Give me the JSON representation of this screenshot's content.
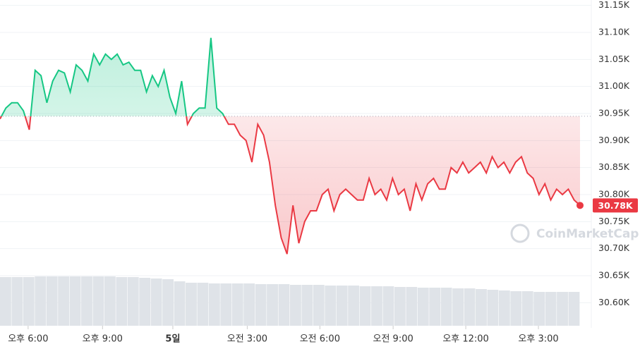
{
  "chart_data": {
    "type": "line",
    "values": [
      30.94,
      30.96,
      30.97,
      30.97,
      30.955,
      30.92,
      31.03,
      31.02,
      30.97,
      31.01,
      31.03,
      31.025,
      30.99,
      31.04,
      31.03,
      31.01,
      31.06,
      31.04,
      31.06,
      31.05,
      31.06,
      31.04,
      31.045,
      31.03,
      31.03,
      30.99,
      31.02,
      31.0,
      31.03,
      30.98,
      30.95,
      31.01,
      30.93,
      30.95,
      30.96,
      30.96,
      31.09,
      30.96,
      30.95,
      30.93,
      30.93,
      30.91,
      30.9,
      30.86,
      30.93,
      30.91,
      30.86,
      30.78,
      30.72,
      30.69,
      30.78,
      30.71,
      30.75,
      30.77,
      30.77,
      30.8,
      30.81,
      30.77,
      30.8,
      30.81,
      30.8,
      30.79,
      30.79,
      30.83,
      30.8,
      30.81,
      30.79,
      30.83,
      30.8,
      30.81,
      30.77,
      30.82,
      30.79,
      30.82,
      30.83,
      30.81,
      30.81,
      30.85,
      30.84,
      30.86,
      30.84,
      30.85,
      30.86,
      30.84,
      30.87,
      30.85,
      30.86,
      30.84,
      30.86,
      30.87,
      30.84,
      30.83,
      30.8,
      30.82,
      30.79,
      30.81,
      30.8,
      30.81,
      30.79,
      30.78
    ],
    "current_price_label": "30.78K",
    "baseline": 30.945,
    "up_color": "#16c784",
    "down_color": "#ea3943",
    "xlim": [
      0,
      99
    ],
    "xticks": [
      {
        "value": 4.8,
        "label": "오후 6:00"
      },
      {
        "value": 17.5,
        "label": "오후 9:00"
      },
      {
        "value": 29.5,
        "label": "5일"
      },
      {
        "value": 42.2,
        "label": "오전 3:00"
      },
      {
        "value": 54.6,
        "label": "오전 6:00"
      },
      {
        "value": 67.1,
        "label": "오전 9:00"
      },
      {
        "value": 79.5,
        "label": "오후 12:00"
      },
      {
        "value": 91.9,
        "label": "오후 3:00"
      }
    ],
    "ylim": [
      30.56,
      31.16
    ],
    "yticks": [
      {
        "value": 30.6,
        "label": "30.60K"
      },
      {
        "value": 30.65,
        "label": "30.65K"
      },
      {
        "value": 30.7,
        "label": "30.70K"
      },
      {
        "value": 30.75,
        "label": "30.75K"
      },
      {
        "value": 30.8,
        "label": "30.80K"
      },
      {
        "value": 30.85,
        "label": "30.85K"
      },
      {
        "value": 30.9,
        "label": "30.90K"
      },
      {
        "value": 30.95,
        "label": "30.95K"
      },
      {
        "value": 31.0,
        "label": "31.00K"
      },
      {
        "value": 31.05,
        "label": "31.05K"
      },
      {
        "value": 31.1,
        "label": "31.10K"
      },
      {
        "value": 31.15,
        "label": "31.15K"
      }
    ],
    "grid": true,
    "volume": {
      "color": "#dfe3e8",
      "ylim": [
        0,
        100
      ],
      "values": [
        69,
        69,
        69,
        70,
        70,
        70,
        70,
        70,
        70,
        70,
        69,
        69,
        68,
        67,
        66,
        63,
        61,
        61,
        60,
        60,
        60,
        60,
        59,
        59,
        59,
        58,
        58,
        58,
        57,
        57,
        57,
        56,
        56,
        56,
        55,
        55,
        54,
        54,
        54,
        53,
        53,
        52,
        51,
        50,
        49,
        49,
        48,
        48,
        48,
        48
      ]
    },
    "watermark": "CoinMarketCap"
  }
}
